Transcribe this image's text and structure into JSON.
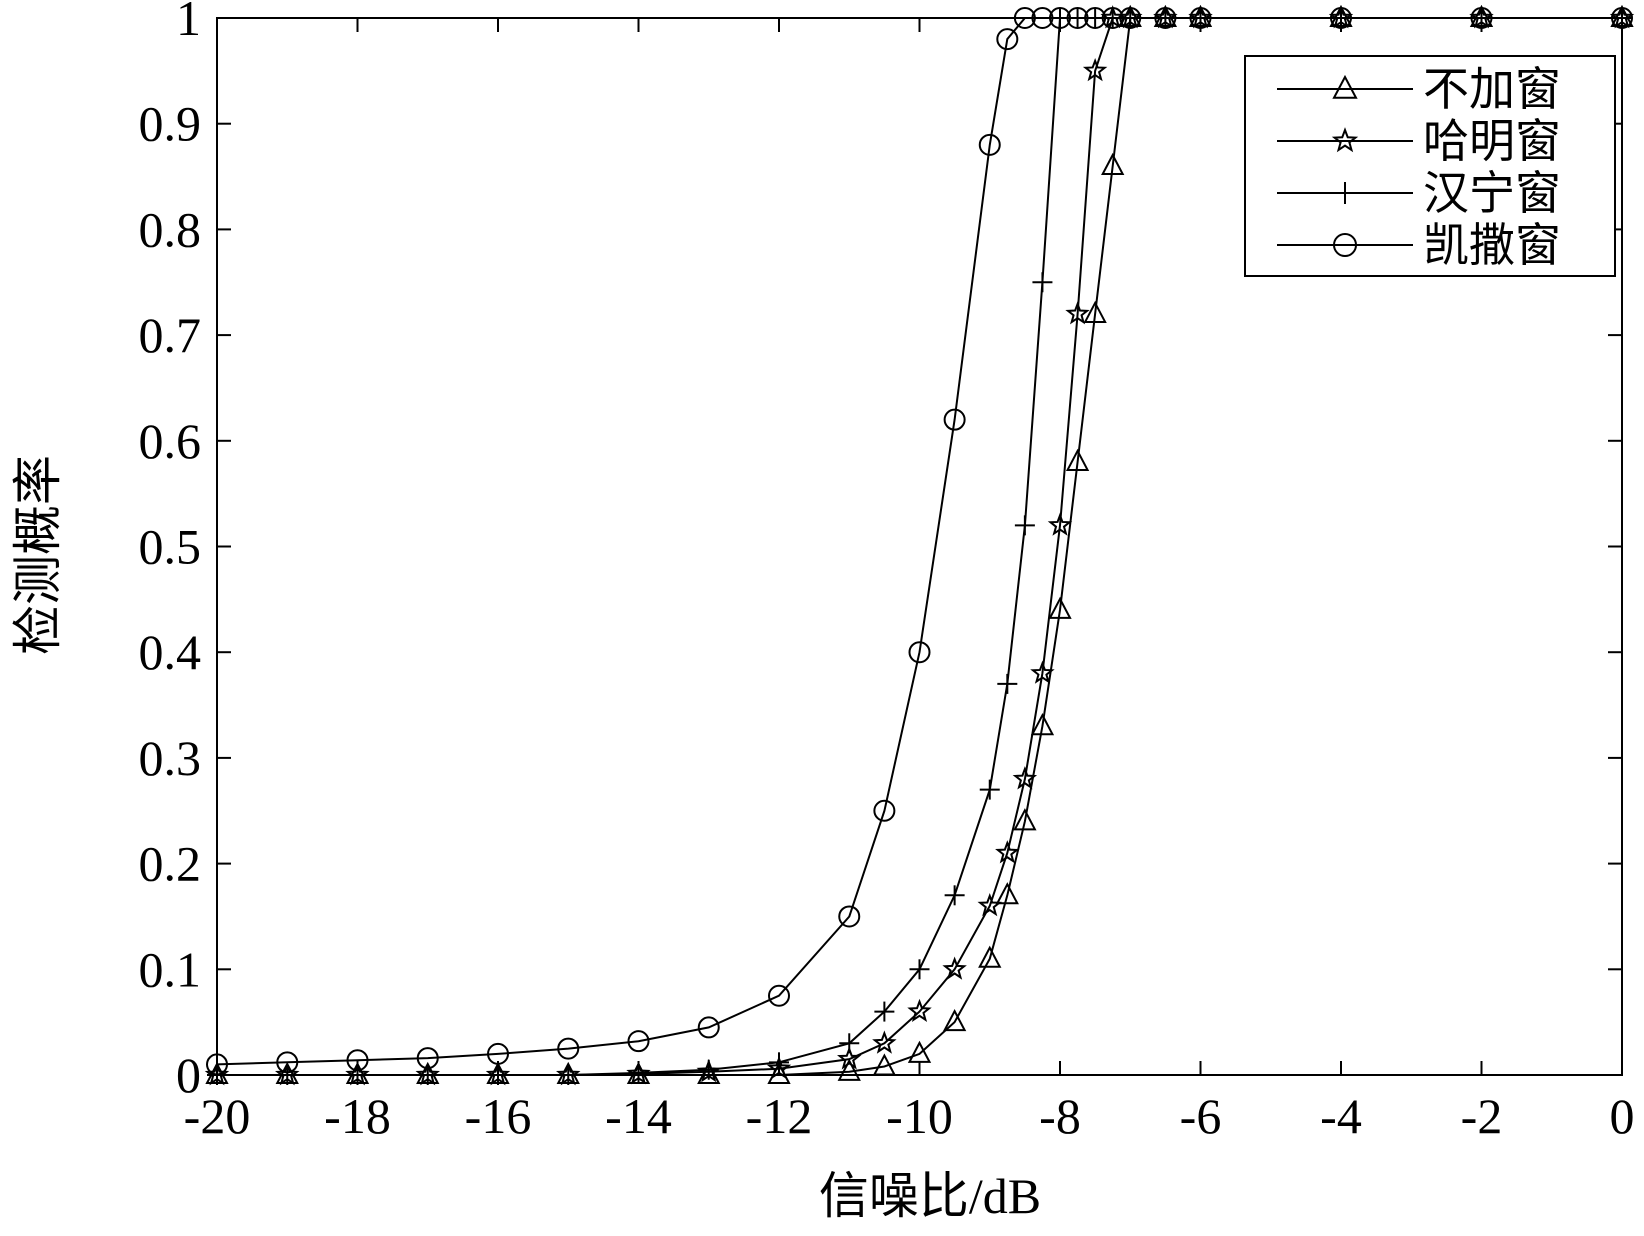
{
  "chart_data": {
    "type": "line",
    "title": "",
    "xlabel": "信噪比/dB",
    "ylabel": "检测概率",
    "xlim": [
      -20,
      0
    ],
    "ylim": [
      0,
      1
    ],
    "grid": false,
    "legend_position": "top-right",
    "x_ticks": [
      "-20",
      "-18",
      "-16",
      "-14",
      "-12",
      "-10",
      "-8",
      "-6",
      "-4",
      "-2",
      "0"
    ],
    "y_ticks": [
      "0",
      "0.1",
      "0.2",
      "0.3",
      "0.4",
      "0.5",
      "0.6",
      "0.7",
      "0.8",
      "0.9",
      "1"
    ],
    "x": [
      -20,
      -19,
      -18,
      -17,
      -16,
      -15,
      -14,
      -13,
      -12,
      -11,
      -10.5,
      -10,
      -9.5,
      -9,
      -8.75,
      -8.5,
      -8.25,
      -8,
      -7.75,
      -7.5,
      -7.25,
      -7,
      -6.5,
      -6,
      -4,
      -2,
      0
    ],
    "series": [
      {
        "name": "不加窗",
        "marker": "triangle",
        "values": [
          0,
          0,
          0,
          0,
          0,
          0,
          0,
          0,
          0,
          0.003,
          0.008,
          0.02,
          0.05,
          0.11,
          0.17,
          0.24,
          0.33,
          0.44,
          0.58,
          0.72,
          0.86,
          1,
          1,
          1,
          1,
          1,
          1
        ]
      },
      {
        "name": "哈明窗",
        "marker": "star",
        "values": [
          0,
          0,
          0,
          0,
          0,
          0,
          0.001,
          0.003,
          0.006,
          0.015,
          0.03,
          0.06,
          0.1,
          0.16,
          0.21,
          0.28,
          0.38,
          0.52,
          0.72,
          0.95,
          1,
          1,
          1,
          1,
          1,
          1,
          1
        ]
      },
      {
        "name": "汉宁窗",
        "marker": "plus",
        "values": [
          0,
          0,
          0,
          0,
          0,
          0,
          0.002,
          0.005,
          0.012,
          0.03,
          0.06,
          0.1,
          0.17,
          0.27,
          0.37,
          0.52,
          0.75,
          1,
          1,
          1,
          1,
          1,
          1,
          1,
          1,
          1,
          1
        ]
      },
      {
        "name": "凯撒窗",
        "marker": "circle",
        "values": [
          0.01,
          0.012,
          0.014,
          0.016,
          0.02,
          0.025,
          0.032,
          0.045,
          0.075,
          0.15,
          0.25,
          0.4,
          0.62,
          0.88,
          0.98,
          1,
          1,
          1,
          1,
          1,
          1,
          1,
          1,
          1,
          1,
          1,
          1
        ]
      }
    ]
  }
}
